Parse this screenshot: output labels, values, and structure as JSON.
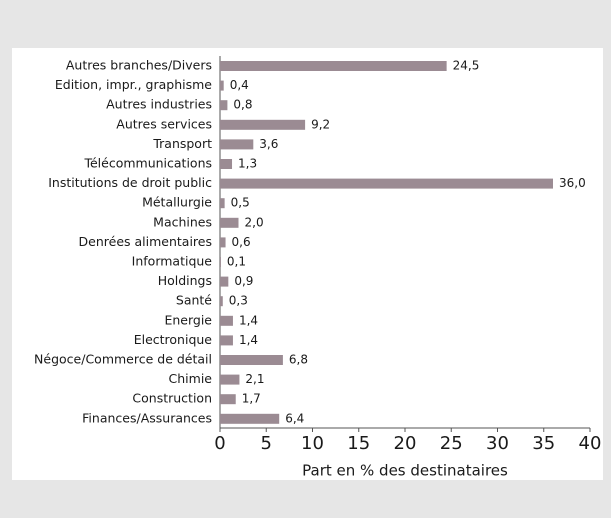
{
  "chart_data": {
    "type": "bar",
    "orientation": "horizontal",
    "x_label": "Part en % des destinataires",
    "categories": [
      "Autres branches/Divers",
      "Edition, impr., graphisme",
      "Autres industries",
      "Autres services",
      "Transport",
      "Télécommunications",
      "Institutions de droit public",
      "Métallurgie",
      "Machines",
      "Denrées alimentaires",
      "Informatique",
      "Holdings",
      "Santé",
      "Energie",
      "Electronique",
      "Négoce/Commerce de détail",
      "Chimie",
      "Construction",
      "Finances/Assurances"
    ],
    "values": [
      24.5,
      0.4,
      0.8,
      9.2,
      3.6,
      1.3,
      36.0,
      0.5,
      2.0,
      0.6,
      0.1,
      0.9,
      0.3,
      1.4,
      1.4,
      6.8,
      2.1,
      1.7,
      6.4
    ],
    "value_labels": [
      "24,5",
      "0,4",
      "0,8",
      "9,2",
      "3,6",
      "1,3",
      "36,0",
      "0,5",
      "2,0",
      "0,6",
      "0,1",
      "0,9",
      "0,3",
      "1,4",
      "1,4",
      "6,8",
      "2,1",
      "1,7",
      "6,4"
    ],
    "color": "#9b8b93",
    "xlim": [
      0,
      40
    ],
    "xticks": [
      0,
      5,
      10,
      15,
      20,
      25,
      30,
      35,
      40
    ],
    "grid": false
  }
}
